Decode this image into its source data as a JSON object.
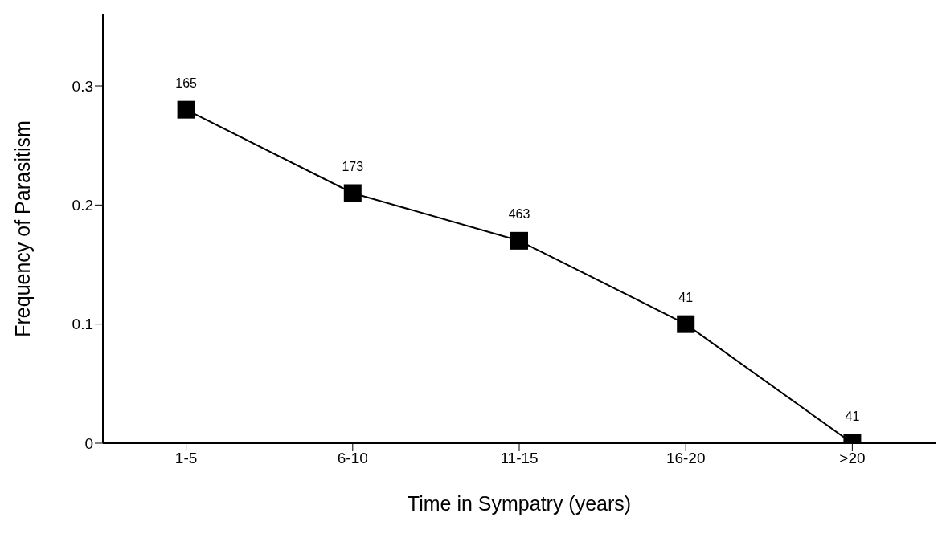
{
  "chart_data": {
    "type": "line",
    "xlabel": "Time in Sympatry (years)",
    "ylabel": "Frequency of Parasitism",
    "categories": [
      "1-5",
      "6-10",
      "11-15",
      "16-20",
      ">20"
    ],
    "values": [
      0.28,
      0.21,
      0.17,
      0.1,
      0
    ],
    "annotations": [
      {
        "text": "165",
        "x": "1-5",
        "y": 0.28
      },
      {
        "text": "173",
        "x": "6-10",
        "y": 0.21
      },
      {
        "text": "463",
        "x": "11-15",
        "y": 0.17
      },
      {
        "text": "41",
        "x": "16-20",
        "y": 0.1
      },
      {
        "text": "41",
        "x": ">20",
        "y": 0
      }
    ],
    "color": "#000000",
    "marker": "square",
    "line_style": "solid",
    "ylim": [
      0,
      0.36
    ],
    "yticks": [
      0,
      0.1,
      0.2,
      0.3
    ]
  }
}
